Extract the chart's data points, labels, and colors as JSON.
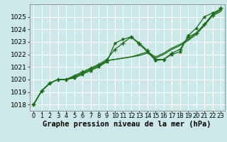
{
  "background_color": "#cce8e8",
  "plot_bg_color": "#cce8e8",
  "grid_color": "#ffffff",
  "line_color": "#1a6b1a",
  "xlabel": "Graphe pression niveau de la mer (hPa)",
  "xlabel_fontsize": 7.5,
  "ylabel_fontsize": 6.5,
  "tick_fontsize": 6,
  "xlim": [
    -0.5,
    23.5
  ],
  "ylim": [
    1017.5,
    1026.0
  ],
  "yticks": [
    1018,
    1019,
    1020,
    1021,
    1022,
    1023,
    1024,
    1025
  ],
  "xticks": [
    0,
    1,
    2,
    3,
    4,
    5,
    6,
    7,
    8,
    9,
    10,
    11,
    12,
    13,
    14,
    15,
    16,
    17,
    18,
    19,
    20,
    21,
    22,
    23
  ],
  "s1_x": [
    0,
    1,
    2,
    3,
    4,
    5,
    6,
    7,
    8,
    9,
    10,
    11,
    12,
    13,
    14,
    15,
    16,
    17,
    18,
    19,
    20,
    21,
    22,
    23
  ],
  "s1_y": [
    1018.0,
    1019.1,
    1019.7,
    1020.0,
    1020.0,
    1020.1,
    1020.4,
    1020.7,
    1021.0,
    1021.4,
    1022.9,
    1023.2,
    1023.4,
    1022.8,
    1022.2,
    1021.5,
    1021.6,
    1022.0,
    1022.2,
    1023.5,
    1024.1,
    1025.0,
    1025.3,
    1025.6
  ],
  "s2_x": [
    0,
    1,
    2,
    3,
    4,
    5,
    6,
    7,
    8,
    9,
    10,
    11,
    12,
    13,
    14,
    15,
    16,
    17,
    18,
    19,
    20,
    21,
    22,
    23
  ],
  "s2_y": [
    1018.0,
    1019.1,
    1019.7,
    1020.0,
    1020.0,
    1020.2,
    1020.5,
    1020.8,
    1021.1,
    1021.5,
    1021.6,
    1021.7,
    1021.8,
    1021.9,
    1022.1,
    1021.7,
    1022.0,
    1022.4,
    1022.7,
    1023.1,
    1023.6,
    1024.3,
    1025.1,
    1025.4
  ],
  "s3_x": [
    0,
    1,
    2,
    3,
    4,
    5,
    6,
    7,
    8,
    9,
    10,
    11,
    12,
    13,
    14,
    15,
    16,
    17,
    18,
    19,
    20,
    21,
    22,
    23
  ],
  "s3_y": [
    1018.0,
    1019.1,
    1019.7,
    1020.0,
    1020.0,
    1020.2,
    1020.5,
    1020.8,
    1021.1,
    1021.5,
    1021.6,
    1021.7,
    1021.8,
    1022.0,
    1022.2,
    1021.8,
    1022.1,
    1022.5,
    1022.8,
    1023.2,
    1023.7,
    1024.4,
    1025.2,
    1025.5
  ],
  "s4_x": [
    0,
    1,
    2,
    3,
    4,
    5,
    6,
    7,
    8,
    9,
    10,
    11,
    12,
    13,
    14,
    15,
    16,
    17,
    18,
    19,
    20,
    21,
    22,
    23
  ],
  "s4_y": [
    1018.0,
    1019.1,
    1019.7,
    1020.0,
    1020.0,
    1020.3,
    1020.6,
    1020.9,
    1021.2,
    1021.6,
    1022.4,
    1022.9,
    1023.4,
    1022.9,
    1022.3,
    1021.6,
    1021.6,
    1022.1,
    1022.4,
    1023.4,
    1023.7,
    1024.4,
    1025.1,
    1025.7
  ]
}
